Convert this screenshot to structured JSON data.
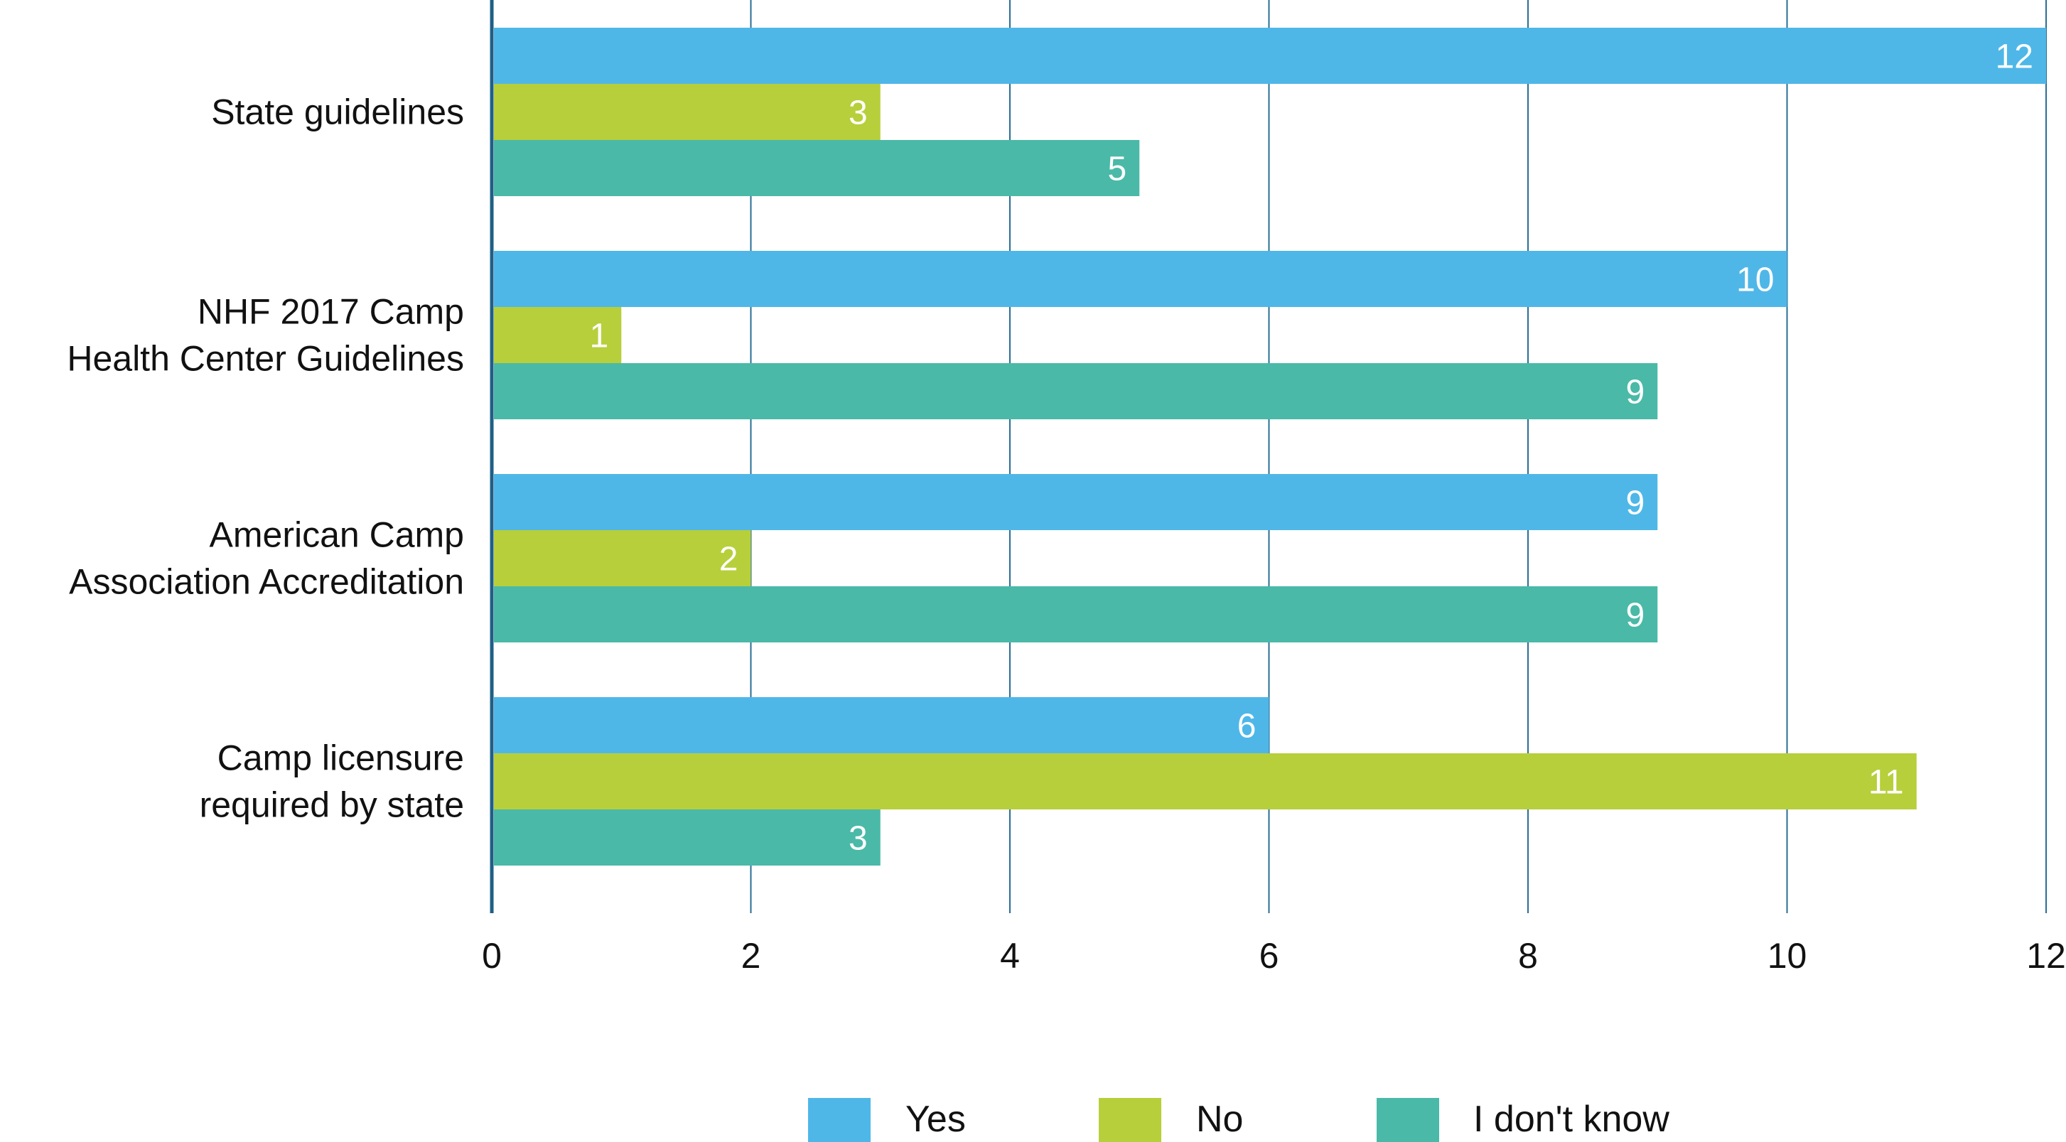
{
  "chart_data": {
    "type": "bar",
    "orientation": "horizontal",
    "categories": [
      [
        "State guidelines"
      ],
      [
        "NHF 2017 Camp",
        "Health Center Guidelines"
      ],
      [
        "American Camp",
        "Association Accreditation"
      ],
      [
        "Camp licensure",
        "required by state"
      ]
    ],
    "series": [
      {
        "name": "Yes",
        "color": "#4FB7E8",
        "values": [
          12,
          10,
          9,
          6
        ]
      },
      {
        "name": "No",
        "color": "#B7CF3A",
        "values": [
          3,
          1,
          2,
          11
        ]
      },
      {
        "name": "I don't know",
        "color": "#4AB9A8",
        "values": [
          5,
          9,
          9,
          3
        ]
      }
    ],
    "xlim": [
      0,
      12
    ],
    "xticks": [
      "0",
      "2",
      "4",
      "6",
      "8",
      "10",
      "12"
    ],
    "grid": true,
    "data_labels": true,
    "legend_position": "bottom",
    "axis_color": "#1F5F86",
    "grid_color": "#2A6E94"
  }
}
